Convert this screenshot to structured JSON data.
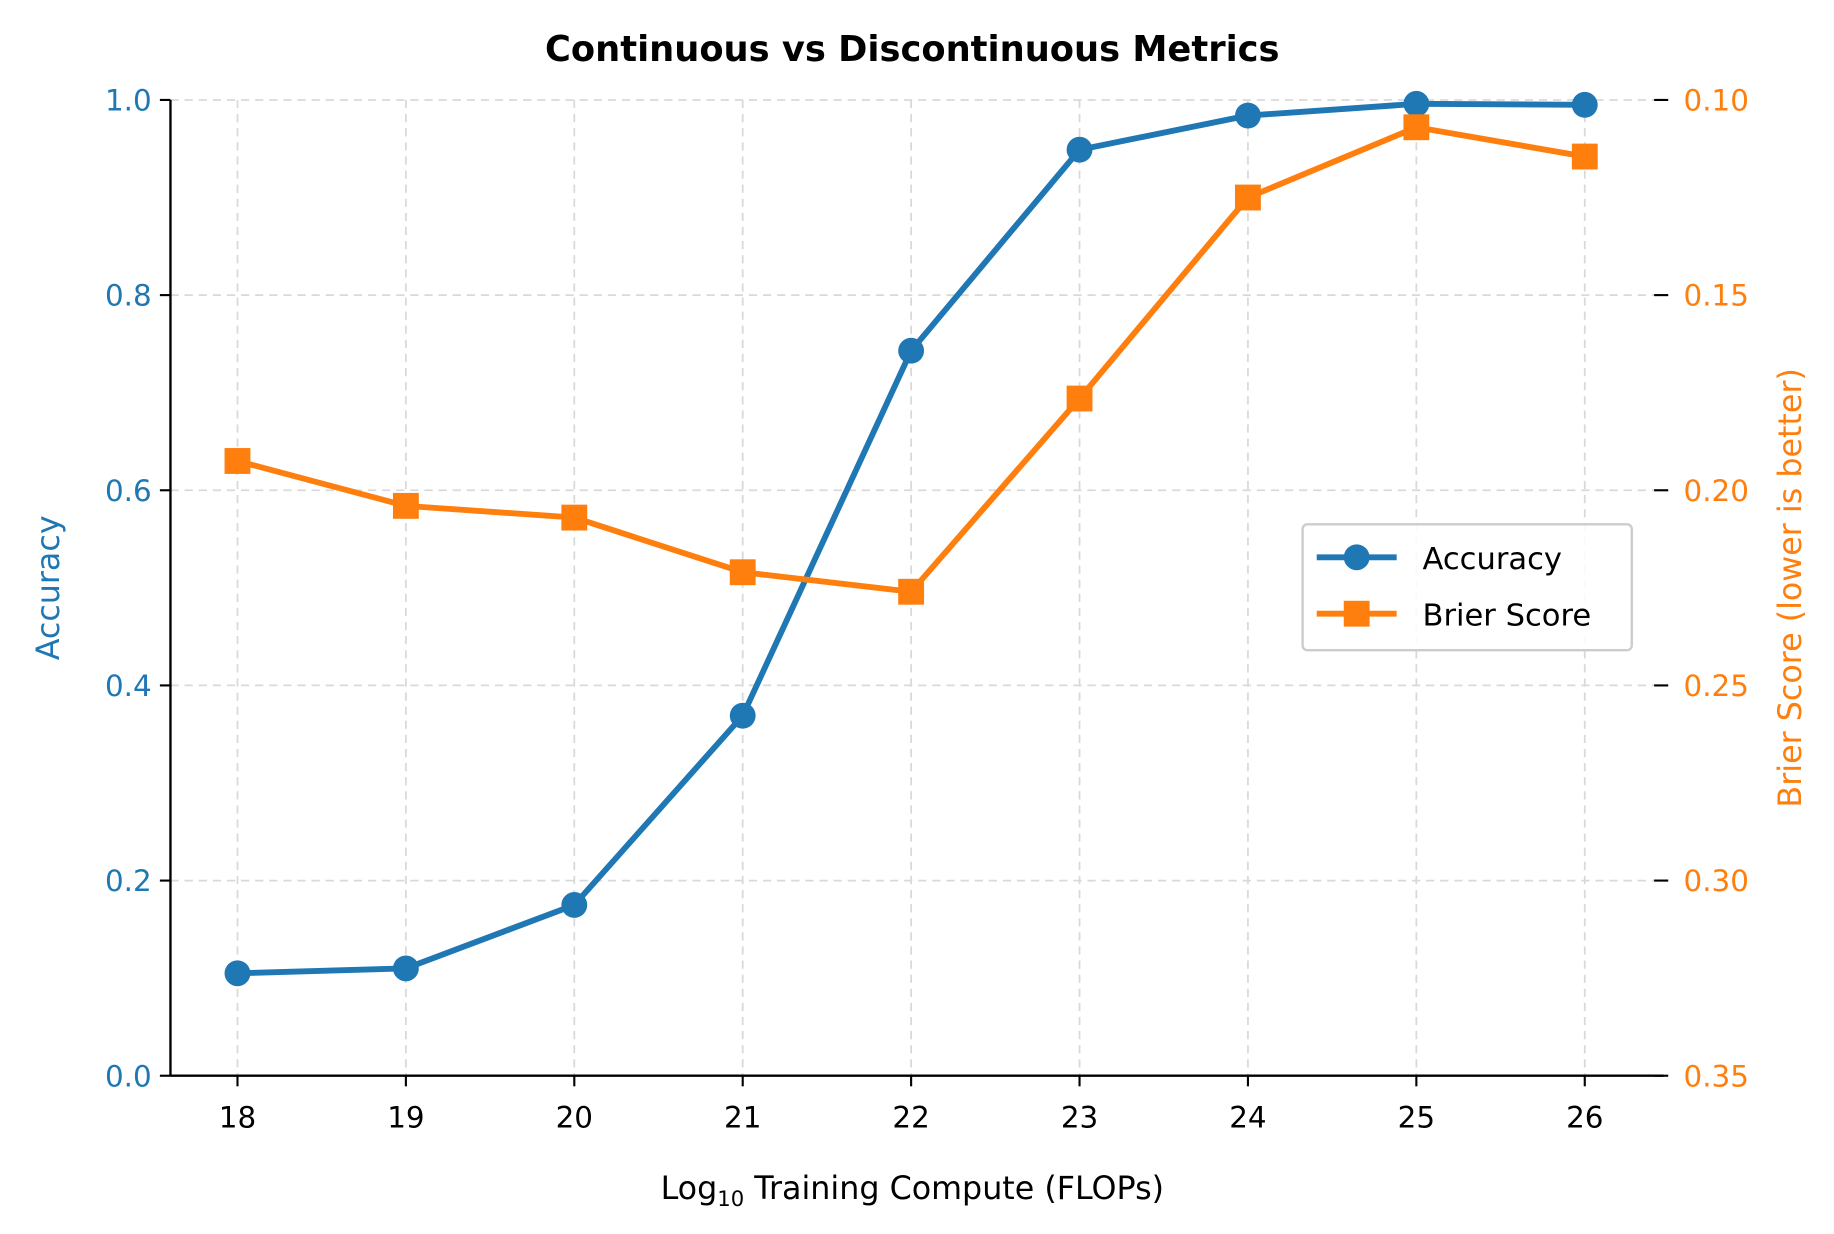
{
  "chart_data": {
    "type": "line",
    "title": "Continuous vs Discontinuous Metrics",
    "xlabel_main": "Log",
    "xlabel_sub": "10",
    "xlabel_rest": " Training Compute (FLOPs)",
    "ylabel_left": "Accuracy",
    "ylabel_right": "Brier Score (lower is better)",
    "x": [
      18,
      19,
      20,
      21,
      22,
      23,
      24,
      25,
      26
    ],
    "x_tick_labels": [
      "18",
      "19",
      "20",
      "21",
      "22",
      "23",
      "24",
      "25",
      "26"
    ],
    "xlim": [
      17.6,
      26.46
    ],
    "ylim_left": [
      0.0,
      1.0
    ],
    "y_left_tick_labels": [
      "0.0",
      "0.2",
      "0.4",
      "0.6",
      "0.8",
      "1.0"
    ],
    "y_left_ticks": [
      0.0,
      0.2,
      0.4,
      0.6,
      0.8,
      1.0
    ],
    "ylim_right": [
      0.35,
      0.1
    ],
    "right_axis_inverted": true,
    "y_right_tick_labels": [
      "0.10",
      "0.15",
      "0.20",
      "0.25",
      "0.30",
      "0.35"
    ],
    "y_right_ticks": [
      0.1,
      0.15,
      0.2,
      0.25,
      0.3,
      0.35
    ],
    "grid": true,
    "legend_placement": "center-right",
    "series": [
      {
        "name": "Accuracy",
        "axis": "left",
        "marker": "circle",
        "color": "#1f77b4",
        "values": [
          0.105,
          0.11,
          0.175,
          0.369,
          0.743,
          0.949,
          0.984,
          0.996,
          0.995
        ]
      },
      {
        "name": "Brier Score",
        "axis": "right",
        "marker": "square",
        "color": "#ff7f0e",
        "values": [
          0.1925,
          0.204,
          0.207,
          0.221,
          0.226,
          0.1765,
          0.125,
          0.107,
          0.1145
        ]
      }
    ]
  }
}
